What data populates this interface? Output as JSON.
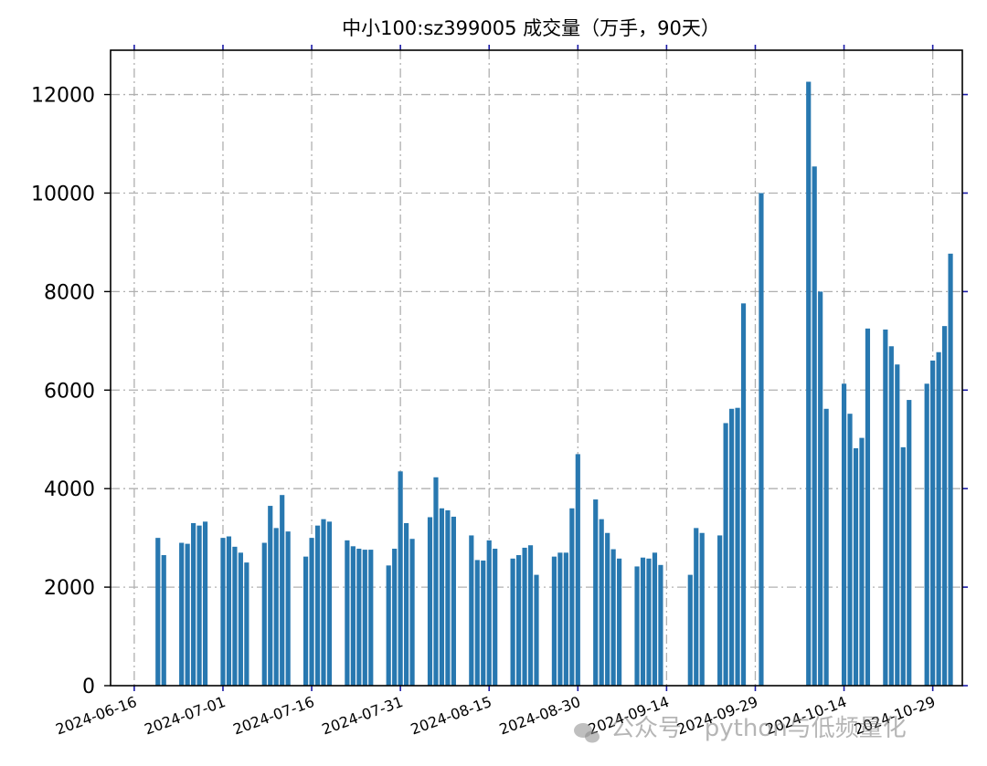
{
  "chart_data": {
    "type": "bar",
    "title": "中小100:sz399005 成交量（万手，90天）",
    "xlabel": "",
    "ylabel": "",
    "ylim": [
      0,
      12900
    ],
    "yticks": [
      0,
      2000,
      4000,
      6000,
      8000,
      10000,
      12000
    ],
    "grid": true,
    "bar_color": "#2878b0",
    "x_start_date": "2024-06-12",
    "x_end_date": "2024-11-03",
    "xtick_dates": [
      "2024-06-16",
      "2024-07-01",
      "2024-07-16",
      "2024-07-31",
      "2024-08-15",
      "2024-08-30",
      "2024-09-14",
      "2024-09-29",
      "2024-10-14",
      "2024-10-29"
    ],
    "xtick_labels": [
      "2024-06-16",
      "2024-07-01",
      "2024-07-16",
      "2024-07-31",
      "2024-08-15",
      "2024-08-30",
      "2024-09-14",
      "2024-09-29",
      "2024-10-14",
      "2024-10-29"
    ],
    "dates": [
      "2024-06-20",
      "2024-06-21",
      "2024-06-24",
      "2024-06-25",
      "2024-06-26",
      "2024-06-27",
      "2024-06-28",
      "2024-07-01",
      "2024-07-02",
      "2024-07-03",
      "2024-07-04",
      "2024-07-05",
      "2024-07-08",
      "2024-07-09",
      "2024-07-10",
      "2024-07-11",
      "2024-07-12",
      "2024-07-15",
      "2024-07-16",
      "2024-07-17",
      "2024-07-18",
      "2024-07-19",
      "2024-07-22",
      "2024-07-23",
      "2024-07-24",
      "2024-07-25",
      "2024-07-26",
      "2024-07-29",
      "2024-07-30",
      "2024-07-31",
      "2024-08-01",
      "2024-08-02",
      "2024-08-05",
      "2024-08-06",
      "2024-08-07",
      "2024-08-08",
      "2024-08-09",
      "2024-08-12",
      "2024-08-13",
      "2024-08-14",
      "2024-08-15",
      "2024-08-16",
      "2024-08-19",
      "2024-08-20",
      "2024-08-21",
      "2024-08-22",
      "2024-08-23",
      "2024-08-26",
      "2024-08-27",
      "2024-08-28",
      "2024-08-29",
      "2024-08-30",
      "2024-09-02",
      "2024-09-03",
      "2024-09-04",
      "2024-09-05",
      "2024-09-06",
      "2024-09-09",
      "2024-09-10",
      "2024-09-11",
      "2024-09-12",
      "2024-09-13",
      "2024-09-18",
      "2024-09-19",
      "2024-09-20",
      "2024-09-23",
      "2024-09-24",
      "2024-09-25",
      "2024-09-26",
      "2024-09-27",
      "2024-09-30",
      "2024-10-08",
      "2024-10-09",
      "2024-10-10",
      "2024-10-11",
      "2024-10-14",
      "2024-10-15",
      "2024-10-16",
      "2024-10-17",
      "2024-10-18",
      "2024-10-21",
      "2024-10-22",
      "2024-10-23",
      "2024-10-24",
      "2024-10-25",
      "2024-10-28",
      "2024-10-29",
      "2024-10-30",
      "2024-10-31",
      "2024-11-01"
    ],
    "values": [
      3000,
      2650,
      2900,
      2880,
      3300,
      3250,
      3330,
      3000,
      3030,
      2820,
      2700,
      2500,
      2900,
      3650,
      3200,
      3870,
      3130,
      2620,
      3000,
      3250,
      3380,
      3330,
      2950,
      2830,
      2780,
      2760,
      2760,
      2440,
      2780,
      4350,
      3300,
      2980,
      3420,
      4230,
      3600,
      3560,
      3430,
      3050,
      2550,
      2540,
      2950,
      2780,
      2580,
      2650,
      2800,
      2850,
      2250,
      2620,
      2700,
      2700,
      3600,
      4700,
      3780,
      3380,
      3100,
      2770,
      2580,
      2420,
      2600,
      2580,
      2700,
      2450,
      2250,
      3200,
      3100,
      3050,
      5330,
      5620,
      5640,
      7760,
      10000,
      12260,
      10540,
      8000,
      5620,
      6130,
      5520,
      4820,
      5030,
      7250,
      7230,
      6890,
      6520,
      4840,
      5800,
      6130,
      6600,
      6770,
      7300,
      8770
    ]
  },
  "watermark": {
    "icon": "wechat-icon",
    "text": "公众号 · python与低频量化"
  }
}
